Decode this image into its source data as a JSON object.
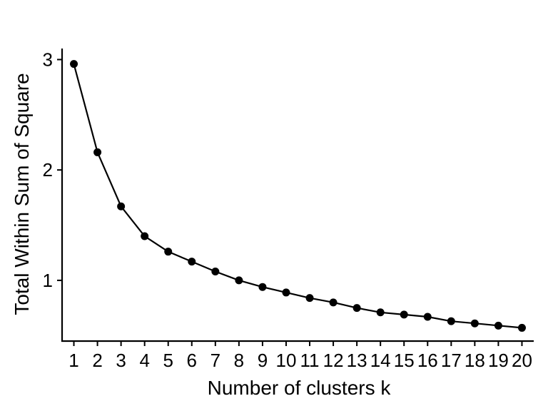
{
  "chart_data": {
    "type": "line",
    "title": "",
    "xlabel": "Number of clusters k",
    "ylabel": "Total Within Sum of Square",
    "x": [
      1,
      2,
      3,
      4,
      5,
      6,
      7,
      8,
      9,
      10,
      11,
      12,
      13,
      14,
      15,
      16,
      17,
      18,
      19,
      20
    ],
    "x_tick_labels": [
      "1",
      "2",
      "3",
      "4",
      "5",
      "6",
      "7",
      "8",
      "9",
      "10",
      "11",
      "12",
      "13",
      "14",
      "15",
      "16",
      "17",
      "18",
      "19",
      "20"
    ],
    "series": [
      {
        "values": [
          2.96,
          2.16,
          1.67,
          1.4,
          1.26,
          1.17,
          1.08,
          1.0,
          0.94,
          0.89,
          0.84,
          0.8,
          0.75,
          0.71,
          0.69,
          0.67,
          0.63,
          0.61,
          0.59,
          0.57
        ]
      }
    ],
    "y_ticks": [
      1,
      2,
      3
    ],
    "y_tick_labels": [
      "1",
      "2",
      "3"
    ],
    "xlim": [
      0.5,
      20.5
    ],
    "ylim": [
      0.45,
      3.1
    ],
    "grid": false,
    "legend": "none",
    "line_color": "#000000",
    "marker_color": "#000000"
  }
}
